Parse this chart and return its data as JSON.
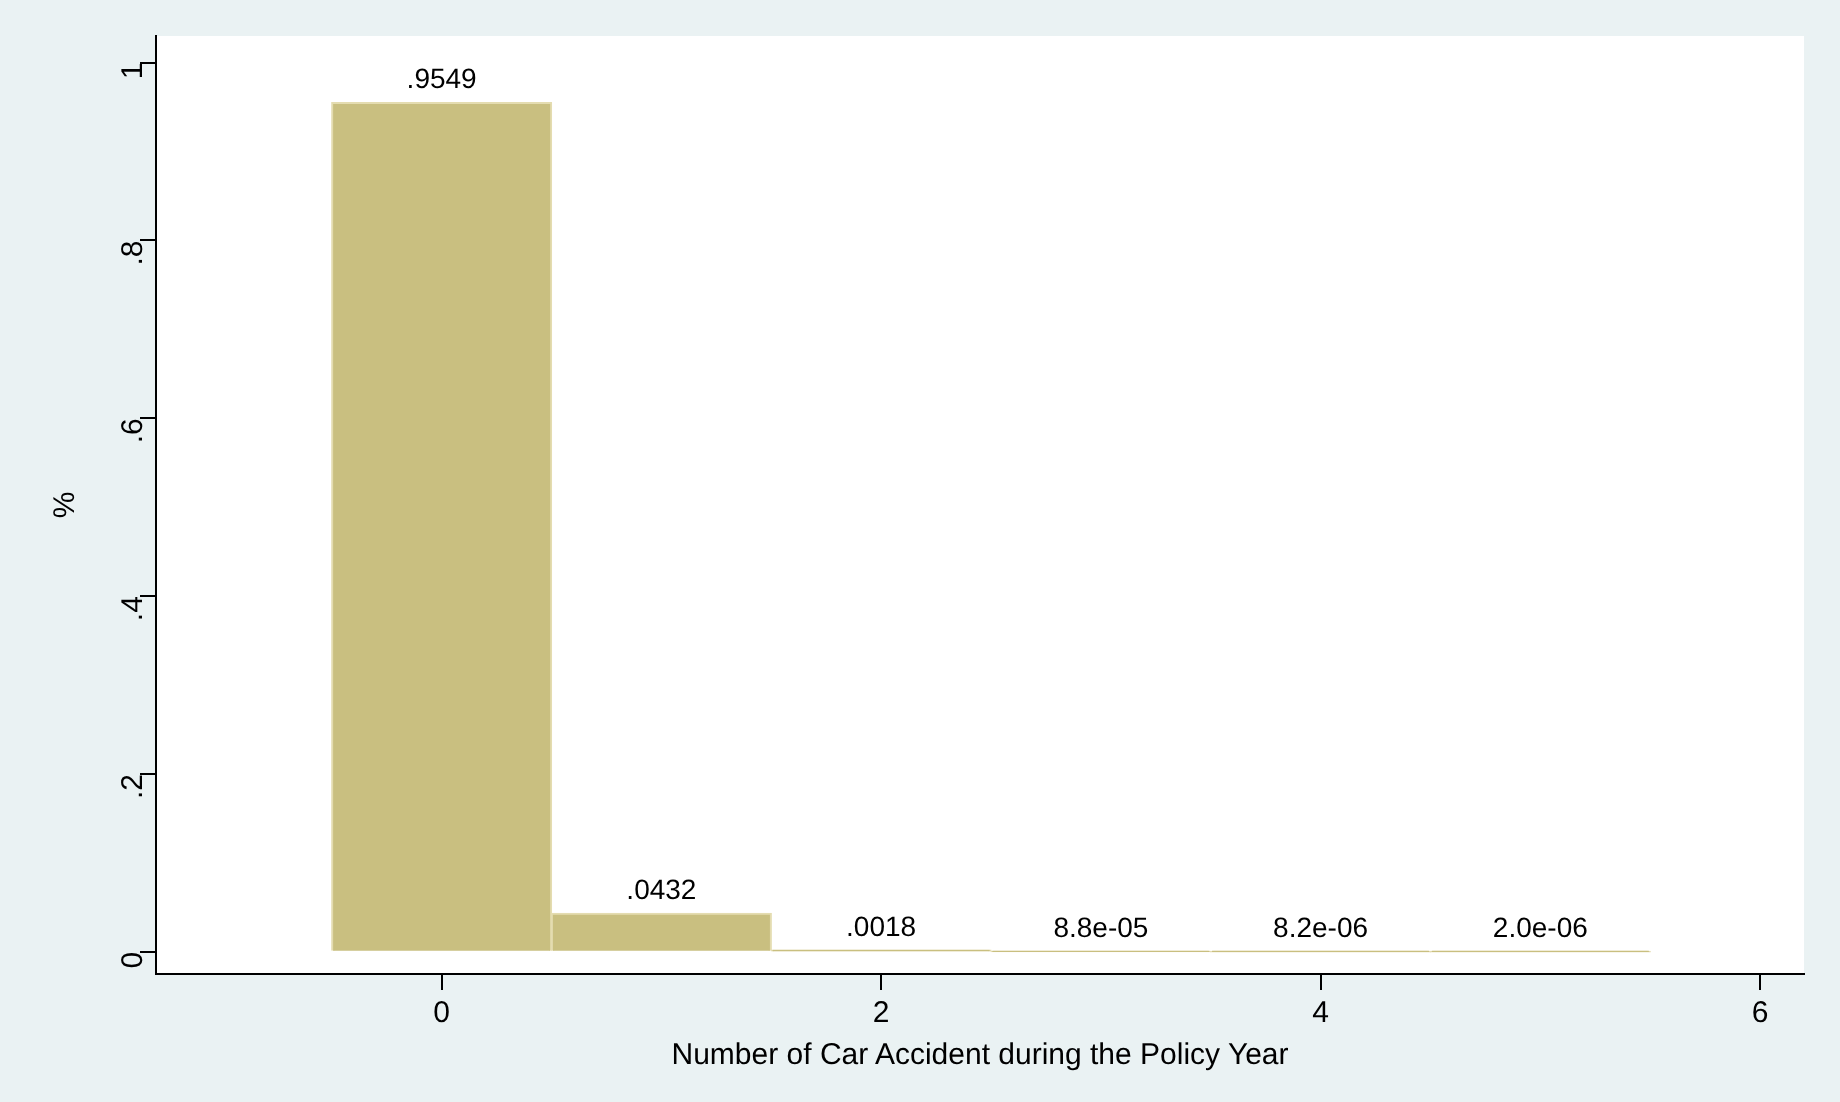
{
  "chart_data": {
    "type": "histogram",
    "xlabel": "Number of Car Accident during the Policy Year",
    "ylabel": "%",
    "bins": [
      -0.5,
      0.5,
      1.5,
      2.5,
      3.5,
      4.5,
      5.5
    ],
    "values": [
      0.9549,
      0.0432,
      0.0018,
      8.8e-05,
      8.2e-06,
      2e-06
    ],
    "value_labels": [
      ".9549",
      ".0432",
      ".0018",
      "8.8e-05",
      "8.2e-06",
      "2.0e-06"
    ],
    "color": "#c9bf80",
    "xlim": [
      -1.3,
      6.2
    ],
    "xticks": [
      0,
      2,
      4,
      6
    ],
    "ylim": [
      -0.025,
      1.03
    ],
    "yticks": [
      0,
      {
        "value": 0.2,
        "label": ".2"
      },
      {
        "value": 0.4,
        "label": ".4"
      },
      {
        "value": 0.6,
        "label": ".6"
      },
      {
        "value": 0.8,
        "label": ".8"
      },
      1
    ],
    "grid": false,
    "legend": false
  }
}
